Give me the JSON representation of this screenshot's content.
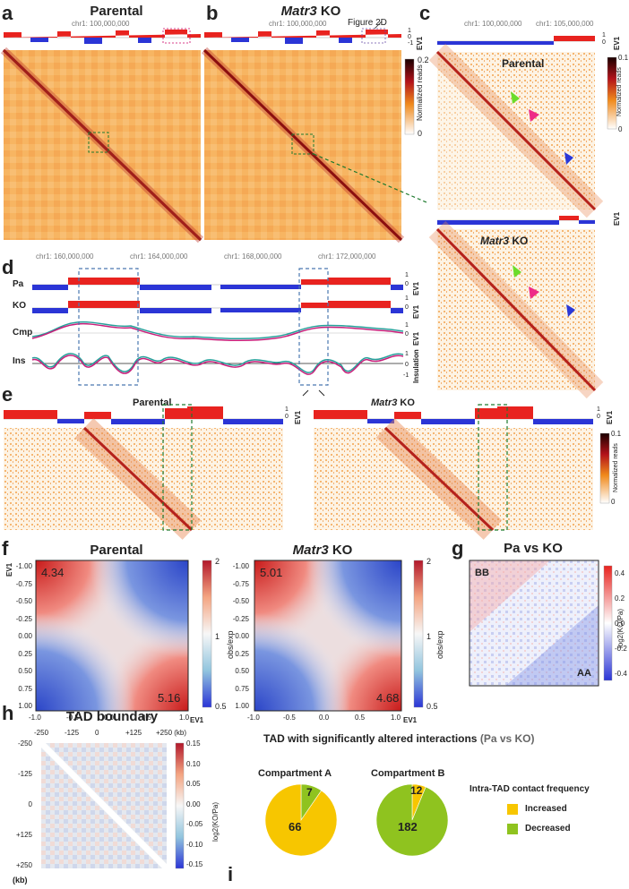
{
  "panels": {
    "a": {
      "letter": "a",
      "title": "Parental",
      "coord": "chr1: 100,000,000"
    },
    "b": {
      "letter": "b",
      "title": "Matr3",
      "title_suffix": " KO",
      "coord": "chr1: 100,000,000",
      "callout": "Figure 2D"
    },
    "ab_colorbar": {
      "max": "0.2",
      "min": "0",
      "label": "Normalized reads",
      "ev_ticks": [
        "1",
        "0",
        "-1"
      ],
      "ev_label": "EV1"
    },
    "c": {
      "letter": "c",
      "coord1": "chr1: 100,000,000",
      "coord2": "chr1: 105,000,000",
      "top_label": "Parental",
      "bottom_label_italic": "Matr3",
      "bottom_label_suffix": " KO",
      "cb_max": "0.1",
      "cb_min": "0",
      "cb_label": "Normalized reads",
      "ev_label": "EV1",
      "ev_ticks": [
        "1",
        "0"
      ]
    },
    "d": {
      "letter": "d",
      "coords": [
        "chr1: 160,000,000",
        "chr1: 164,000,000",
        "chr1: 168,000,000",
        "chr1: 172,000,000"
      ],
      "rows": [
        "Pa",
        "KO",
        "Cmp",
        "Ins"
      ],
      "ev_label": "EV1",
      "ins_label": "Insulation",
      "ev_ticks": [
        "1",
        "0"
      ],
      "ins_ticks": [
        "1",
        "0",
        "-1"
      ]
    },
    "e": {
      "letter": "e",
      "left_title": "Parental",
      "right_title_italic": "Matr3",
      "right_title_suffix": " KO",
      "ev_label": "EV1",
      "ev_ticks": [
        "1",
        "0"
      ],
      "cb_max": "0.1",
      "cb_min": "0",
      "cb_label": "Normalized reads"
    },
    "f": {
      "letter": "f",
      "left_title": "Parental",
      "right_title_italic": "Matr3",
      "right_title_suffix": " KO",
      "ylabel": "EV1",
      "xlabel": "EV1",
      "cb_label": "obs/exp",
      "cb_ticks": [
        "2",
        "1",
        "0.5"
      ],
      "left_corner_top": "4.34",
      "left_corner_bottom": "5.16",
      "right_corner_top": "5.01",
      "right_corner_bottom": "4.68",
      "yticks": [
        "-1.00",
        "-0.75",
        "-0.50",
        "-0.25",
        "0.00",
        "0.25",
        "0.50",
        "0.75",
        "1.00"
      ],
      "xticks": [
        "-1.0",
        "-0.5",
        "0.0",
        "0.5",
        "1.0"
      ]
    },
    "g": {
      "letter": "g",
      "title": "Pa vs KO",
      "bb": "BB",
      "aa": "AA",
      "cb_label": "log2(KO/Pa)",
      "cb_ticks": [
        "0.4",
        "0.2",
        "0.0",
        "-0.2",
        "-0.4"
      ]
    },
    "h": {
      "letter": "h",
      "title": "TAD boundary",
      "xticks": [
        "-250",
        "-125",
        "0",
        "+125",
        "+250 (kb)"
      ],
      "yticks": [
        "-250",
        "-125",
        "0",
        "+125",
        "+250"
      ],
      "yunit": "(kb)",
      "cb_label": "log2(KO/Pa)",
      "cb_ticks": [
        "0.15",
        "0.10",
        "0.05",
        "0.00",
        "-0.05",
        "-0.10",
        "-0.15"
      ]
    },
    "i": {
      "letter": "i",
      "title": "TAD with significantly altered interactions ",
      "title_paren": "(Pa vs KO)",
      "compA": "Compartment A",
      "compB": "Compartment B",
      "a_increased": "66",
      "a_decreased": "7",
      "b_increased": "12",
      "b_decreased": "182",
      "legend_title": "Intra-TAD contact frequency",
      "legend_increased": "Increased",
      "legend_decreased": "Decreased"
    }
  },
  "colors": {
    "red": "#e8231f",
    "blue": "#2b35d6",
    "orange": "#f08a1c",
    "pie_yellow": "#f7c600",
    "pie_green": "#8fc31f",
    "teal": "#27a19b",
    "magenta": "#c81e7a"
  },
  "chart_data": [
    {
      "type": "pie",
      "title": "Compartment A",
      "categories": [
        "Increased",
        "Decreased"
      ],
      "values": [
        66,
        7
      ]
    },
    {
      "type": "pie",
      "title": "Compartment B",
      "categories": [
        "Increased",
        "Decreased"
      ],
      "values": [
        12,
        182
      ]
    }
  ]
}
